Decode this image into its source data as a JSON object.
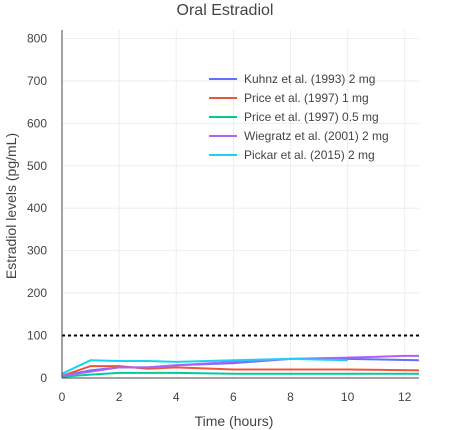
{
  "chart_data": {
    "type": "line",
    "title": "Oral Estradiol",
    "xlabel": "Time (hours)",
    "ylabel": "Estradiol levels (pg/mL)",
    "xlim": [
      0,
      12.5
    ],
    "ylim": [
      0,
      820
    ],
    "xticks": [
      0,
      2,
      4,
      6,
      8,
      10,
      12
    ],
    "yticks": [
      0,
      100,
      200,
      300,
      400,
      500,
      600,
      700,
      800
    ],
    "grid": true,
    "legend_position": "top-right",
    "reference_line": {
      "y": 100,
      "style": "dotted",
      "color": "#000000"
    },
    "series": [
      {
        "name": "Kuhnz et al. (1993) 2 mg",
        "color": "#636efa",
        "x": [
          0,
          1,
          2,
          3,
          4,
          6,
          8,
          10,
          12.5
        ],
        "y": [
          5,
          18,
          25,
          25,
          30,
          35,
          45,
          45,
          42
        ]
      },
      {
        "name": "Price et al. (1997) 1 mg",
        "color": "#ef553b",
        "x": [
          0,
          1,
          2,
          3,
          4,
          6,
          8,
          10,
          12.5
        ],
        "y": [
          5,
          28,
          28,
          22,
          25,
          20,
          20,
          20,
          18
        ]
      },
      {
        "name": "Price et al. (1997) 0.5 mg",
        "color": "#00cc96",
        "x": [
          0,
          1,
          2,
          3,
          4,
          6,
          8,
          10,
          12.5
        ],
        "y": [
          3,
          8,
          12,
          12,
          12,
          10,
          10,
          10,
          10
        ]
      },
      {
        "name": "Wiegratz et al. (2001) 2 mg",
        "color": "#ab63fa",
        "x": [
          0,
          1,
          2,
          3,
          4,
          6,
          8,
          10,
          12,
          12.5
        ],
        "y": [
          5,
          15,
          25,
          25,
          30,
          38,
          45,
          48,
          52,
          52
        ]
      },
      {
        "name": "Pickar et al. (2015) 2 mg",
        "color": "#19d3f3",
        "x": [
          0,
          1,
          2,
          3,
          4,
          6,
          8,
          10
        ],
        "y": [
          10,
          42,
          40,
          40,
          38,
          42,
          45,
          42
        ]
      }
    ]
  }
}
